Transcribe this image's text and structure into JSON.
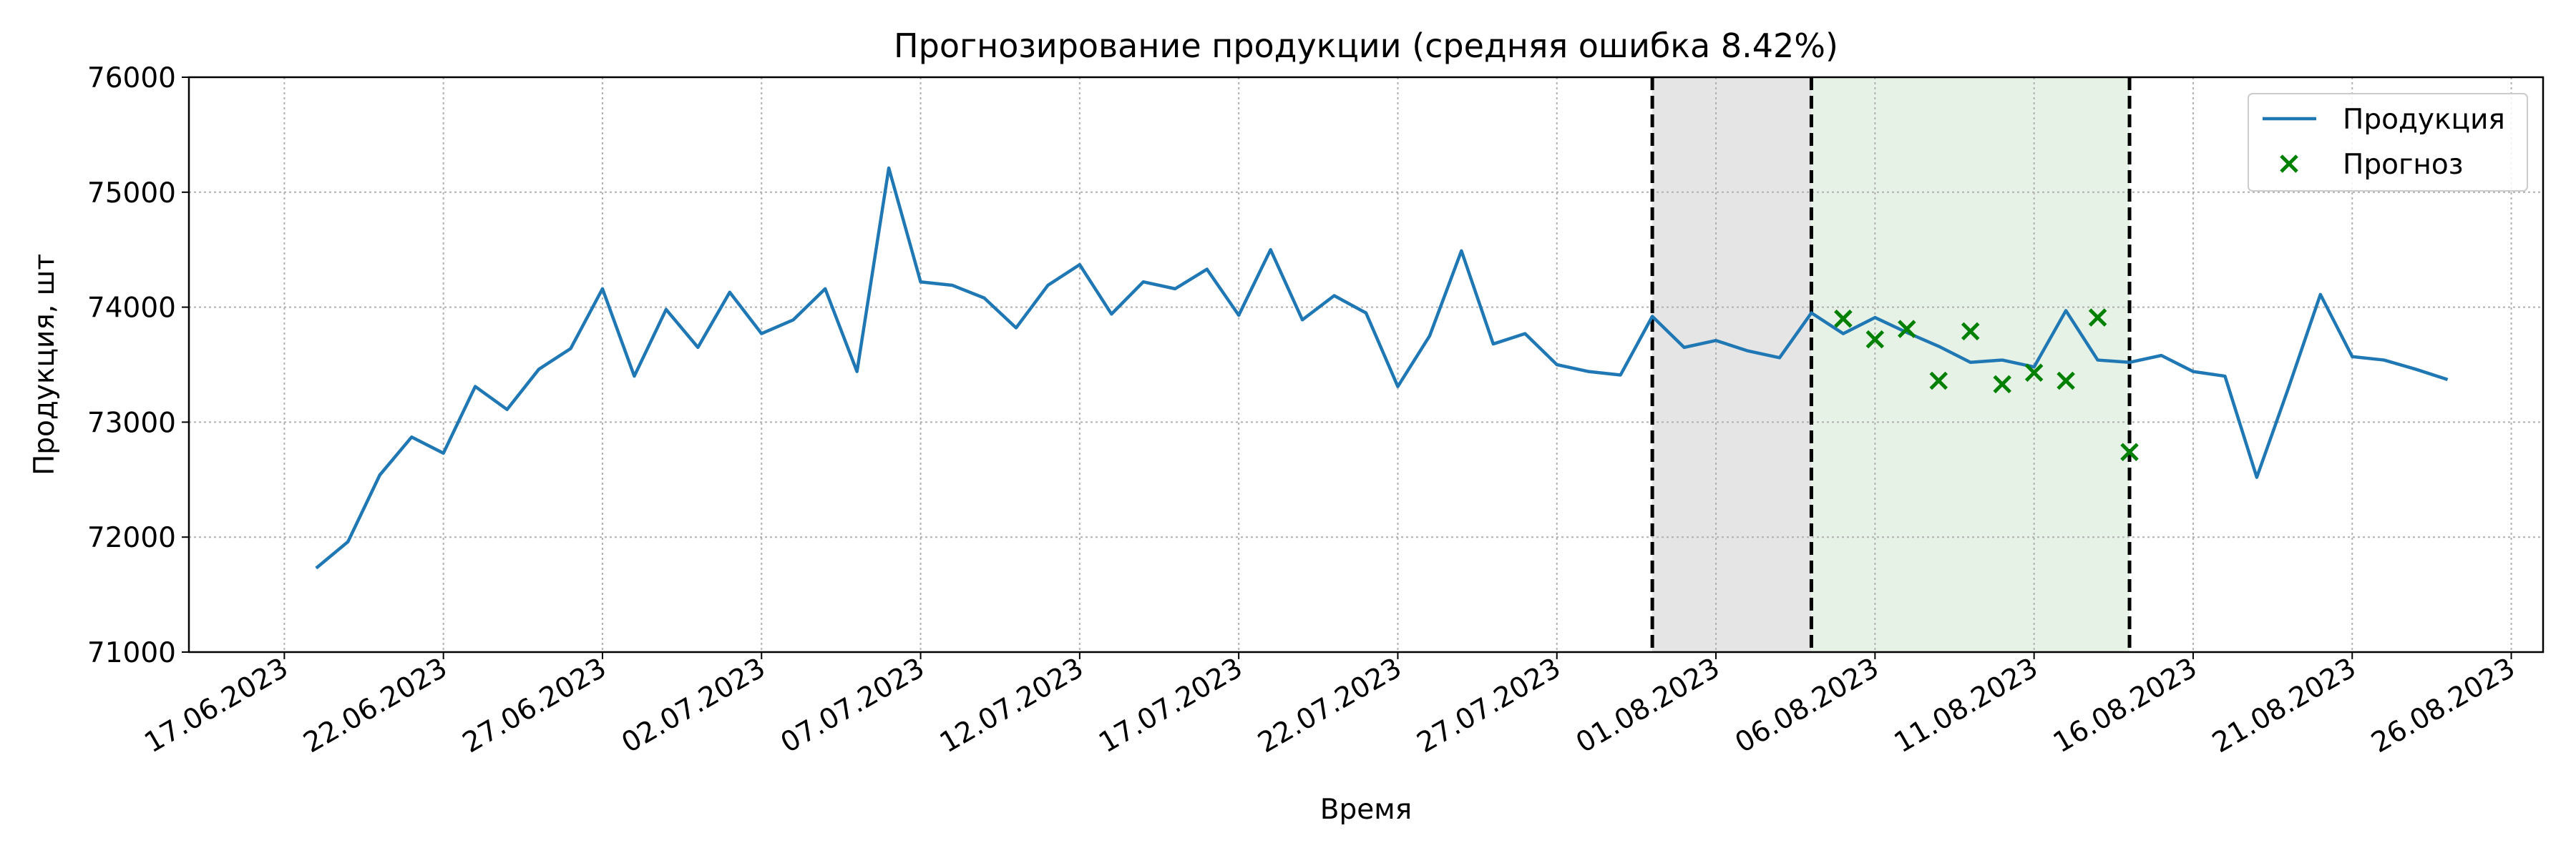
{
  "chart_data": {
    "type": "line",
    "title": "Прогнозирование продукции (средняя ошибка 8.42%)",
    "xlabel": "Время",
    "ylabel": "Продукция, шт",
    "xlim": [
      "14.06.2023",
      "27.08.2023"
    ],
    "xticks": [
      "17.06.2023",
      "22.06.2023",
      "27.06.2023",
      "02.07.2023",
      "07.07.2023",
      "12.07.2023",
      "17.07.2023",
      "22.07.2023",
      "27.07.2023",
      "01.08.2023",
      "06.08.2023",
      "11.08.2023",
      "16.08.2023",
      "21.08.2023",
      "26.08.2023"
    ],
    "ylim": [
      71000,
      76000
    ],
    "yticks": [
      71000,
      72000,
      73000,
      74000,
      75000,
      76000
    ],
    "grid": true,
    "legend": "upper right",
    "spans": [
      {
        "from": "30.07.2023",
        "to": "04.08.2023",
        "color": "#e5e5e5"
      },
      {
        "from": "04.08.2023",
        "to": "14.08.2023",
        "color": "#e5f2e5"
      }
    ],
    "vlines": [
      "30.07.2023",
      "04.08.2023",
      "14.08.2023"
    ],
    "series": [
      {
        "name": "Продукция",
        "color": "#1f77b4",
        "type": "line",
        "x": [
          "18.06.2023",
          "19.06.2023",
          "20.06.2023",
          "21.06.2023",
          "22.06.2023",
          "23.06.2023",
          "24.06.2023",
          "25.06.2023",
          "26.06.2023",
          "27.06.2023",
          "28.06.2023",
          "29.06.2023",
          "30.06.2023",
          "01.07.2023",
          "02.07.2023",
          "03.07.2023",
          "04.07.2023",
          "05.07.2023",
          "06.07.2023",
          "07.07.2023",
          "08.07.2023",
          "09.07.2023",
          "10.07.2023",
          "11.07.2023",
          "12.07.2023",
          "13.07.2023",
          "14.07.2023",
          "15.07.2023",
          "16.07.2023",
          "17.07.2023",
          "18.07.2023",
          "19.07.2023",
          "20.07.2023",
          "21.07.2023",
          "22.07.2023",
          "23.07.2023",
          "24.07.2023",
          "25.07.2023",
          "26.07.2023",
          "27.07.2023",
          "28.07.2023",
          "29.07.2023",
          "30.07.2023",
          "31.07.2023",
          "01.08.2023",
          "02.08.2023",
          "03.08.2023",
          "04.08.2023",
          "05.08.2023",
          "06.08.2023",
          "07.08.2023",
          "08.08.2023",
          "09.08.2023",
          "10.08.2023",
          "11.08.2023",
          "12.08.2023",
          "13.08.2023",
          "14.08.2023",
          "15.08.2023",
          "16.08.2023",
          "17.08.2023",
          "18.08.2023",
          "19.08.2023",
          "20.08.2023",
          "21.08.2023",
          "22.08.2023",
          "23.08.2023",
          "24.08.2023"
        ],
        "values": [
          71730,
          71960,
          72540,
          72870,
          72730,
          73310,
          73110,
          73460,
          73640,
          74160,
          73400,
          73980,
          73650,
          74130,
          73770,
          73890,
          74160,
          73440,
          75210,
          74220,
          74190,
          74080,
          73820,
          74190,
          74370,
          73940,
          74220,
          74160,
          74330,
          73930,
          74500,
          73890,
          74100,
          73950,
          73310,
          73750,
          74490,
          73680,
          73770,
          73500,
          73440,
          73410,
          73920,
          73650,
          73710,
          73620,
          73560,
          73950,
          73770,
          73910,
          73780,
          73660,
          73520,
          73540,
          73480,
          73970,
          73540,
          73520,
          73580,
          73440,
          73400,
          72520,
          73300,
          74110,
          73570,
          73540,
          73460,
          73370
        ]
      },
      {
        "name": "Прогноз",
        "color": "#008000",
        "type": "scatter",
        "x": [
          "05.08.2023",
          "06.08.2023",
          "07.08.2023",
          "08.08.2023",
          "09.08.2023",
          "10.08.2023",
          "11.08.2023",
          "12.08.2023",
          "13.08.2023",
          "14.08.2023"
        ],
        "values": [
          73900,
          73720,
          73810,
          73360,
          73790,
          73330,
          73430,
          73360,
          73910,
          72740
        ]
      }
    ]
  }
}
